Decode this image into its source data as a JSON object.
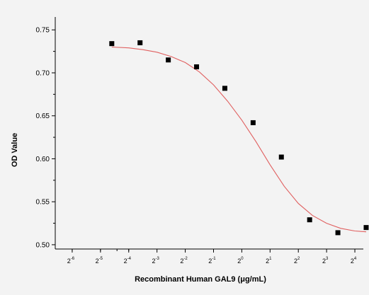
{
  "chart_data": {
    "type": "scatter",
    "xlabel": "Recombinant Human GAL9 (μg/mL)",
    "ylabel": "OD Value",
    "x_scale": "log2",
    "x_ticks": [
      {
        "value": -6,
        "label": "2",
        "exp": "-6"
      },
      {
        "value": -5,
        "label": "2",
        "exp": "-5"
      },
      {
        "value": -4,
        "label": "2",
        "exp": "-4"
      },
      {
        "value": -3,
        "label": "2",
        "exp": "-3"
      },
      {
        "value": -2,
        "label": "2",
        "exp": "-2"
      },
      {
        "value": -1,
        "label": "2",
        "exp": "-1"
      },
      {
        "value": 0,
        "label": "2",
        "exp": "0"
      },
      {
        "value": 1,
        "label": "2",
        "exp": "1"
      },
      {
        "value": 2,
        "label": "2",
        "exp": "2"
      },
      {
        "value": 3,
        "label": "2",
        "exp": "3"
      },
      {
        "value": 4,
        "label": "2",
        "exp": "4"
      }
    ],
    "xlim": [
      -6.6,
      4.3
    ],
    "ylim": [
      0.495,
      0.765
    ],
    "y_ticks": [
      0.5,
      0.55,
      0.6,
      0.65,
      0.7,
      0.75
    ],
    "y_tick_labels": [
      "0.50",
      "0.55",
      "0.60",
      "0.65",
      "0.70",
      "0.75"
    ],
    "grid": false,
    "legend": "none",
    "series": [
      {
        "kind": "points",
        "marker": "square",
        "color": "#000000",
        "x": [
          -4.6,
          -3.6,
          -2.6,
          -1.6,
          -0.6,
          0.4,
          1.4,
          2.4,
          3.4,
          4.4
        ],
        "y": [
          0.734,
          0.735,
          0.715,
          0.707,
          0.682,
          0.642,
          0.602,
          0.529,
          0.514,
          0.52
        ]
      },
      {
        "kind": "fit-curve",
        "color": "#e06060",
        "x": [
          -4.6,
          -4.0,
          -3.5,
          -3.0,
          -2.5,
          -2.0,
          -1.5,
          -1.0,
          -0.5,
          0.0,
          0.5,
          1.0,
          1.5,
          2.0,
          2.5,
          3.0,
          3.5,
          4.0,
          4.4
        ],
        "y": [
          0.73,
          0.729,
          0.727,
          0.724,
          0.719,
          0.712,
          0.701,
          0.686,
          0.667,
          0.645,
          0.62,
          0.593,
          0.568,
          0.548,
          0.534,
          0.525,
          0.519,
          0.516,
          0.515
        ]
      }
    ]
  }
}
